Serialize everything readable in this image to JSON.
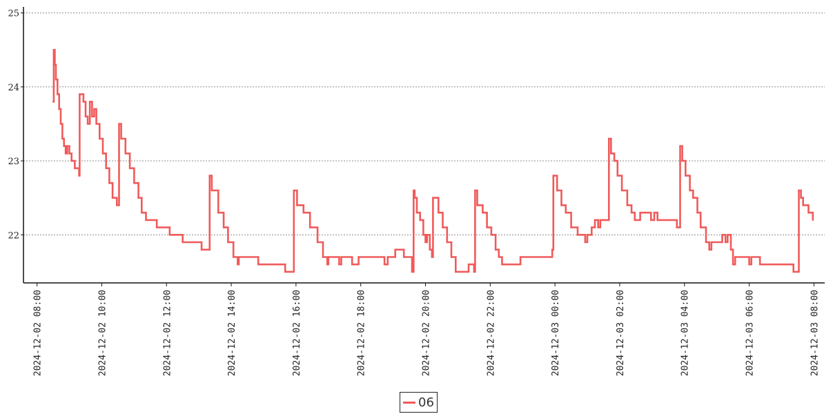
{
  "chart_data": {
    "type": "line",
    "title": "",
    "xlabel": "",
    "ylabel": "",
    "ylim": [
      21.35,
      25.1
    ],
    "xlim": [
      "2024-12-02 07:40",
      "2024-12-03 08:20"
    ],
    "grid": "horizontal dotted",
    "legend_position": "bottom-center",
    "y_ticks": [
      "22",
      "23",
      "24",
      "25"
    ],
    "x_ticks": [
      "2024-12-02 08:00",
      "2024-12-02 10:00",
      "2024-12-02 12:00",
      "2024-12-02 14:00",
      "2024-12-02 16:00",
      "2024-12-02 18:00",
      "2024-12-02 20:00",
      "2024-12-02 22:00",
      "2024-12-03 00:00",
      "2024-12-03 02:00",
      "2024-12-03 04:00",
      "2024-12-03 06:00",
      "2024-12-03 08:00"
    ],
    "series": [
      {
        "name": "06",
        "color": "#f05a5a",
        "step": true,
        "points": [
          [
            "2024-12-02 08:30",
            23.8
          ],
          [
            "2024-12-02 08:31",
            24.5
          ],
          [
            "2024-12-02 08:33",
            24.3
          ],
          [
            "2024-12-02 08:35",
            24.1
          ],
          [
            "2024-12-02 08:38",
            23.9
          ],
          [
            "2024-12-02 08:41",
            23.7
          ],
          [
            "2024-12-02 08:44",
            23.5
          ],
          [
            "2024-12-02 08:47",
            23.3
          ],
          [
            "2024-12-02 08:50",
            23.2
          ],
          [
            "2024-12-02 08:53",
            23.1
          ],
          [
            "2024-12-02 08:56",
            23.2
          ],
          [
            "2024-12-02 09:00",
            23.1
          ],
          [
            "2024-12-02 09:04",
            23.0
          ],
          [
            "2024-12-02 09:10",
            22.9
          ],
          [
            "2024-12-02 09:18",
            22.8
          ],
          [
            "2024-12-02 09:19",
            23.9
          ],
          [
            "2024-12-02 09:26",
            23.8
          ],
          [
            "2024-12-02 09:30",
            23.6
          ],
          [
            "2024-12-02 09:34",
            23.5
          ],
          [
            "2024-12-02 09:38",
            23.8
          ],
          [
            "2024-12-02 09:42",
            23.6
          ],
          [
            "2024-12-02 09:46",
            23.7
          ],
          [
            "2024-12-02 09:50",
            23.5
          ],
          [
            "2024-12-02 09:56",
            23.3
          ],
          [
            "2024-12-02 10:02",
            23.1
          ],
          [
            "2024-12-02 10:08",
            22.9
          ],
          [
            "2024-12-02 10:14",
            22.7
          ],
          [
            "2024-12-02 10:20",
            22.5
          ],
          [
            "2024-12-02 10:28",
            22.4
          ],
          [
            "2024-12-02 10:32",
            23.5
          ],
          [
            "2024-12-02 10:36",
            23.3
          ],
          [
            "2024-12-02 10:44",
            23.1
          ],
          [
            "2024-12-02 10:52",
            22.9
          ],
          [
            "2024-12-02 11:00",
            22.7
          ],
          [
            "2024-12-02 11:08",
            22.5
          ],
          [
            "2024-12-02 11:14",
            22.3
          ],
          [
            "2024-12-02 11:22",
            22.2
          ],
          [
            "2024-12-02 11:42",
            22.1
          ],
          [
            "2024-12-02 12:06",
            22.0
          ],
          [
            "2024-12-02 12:30",
            21.9
          ],
          [
            "2024-12-02 13:05",
            21.8
          ],
          [
            "2024-12-02 13:20",
            22.8
          ],
          [
            "2024-12-02 13:24",
            22.6
          ],
          [
            "2024-12-02 13:36",
            22.3
          ],
          [
            "2024-12-02 13:46",
            22.1
          ],
          [
            "2024-12-02 13:54",
            21.9
          ],
          [
            "2024-12-02 14:04",
            21.7
          ],
          [
            "2024-12-02 14:12",
            21.6
          ],
          [
            "2024-12-02 14:14",
            21.7
          ],
          [
            "2024-12-02 14:50",
            21.6
          ],
          [
            "2024-12-02 15:40",
            21.5
          ],
          [
            "2024-12-02 15:56",
            22.6
          ],
          [
            "2024-12-02 16:02",
            22.4
          ],
          [
            "2024-12-02 16:14",
            22.3
          ],
          [
            "2024-12-02 16:26",
            22.1
          ],
          [
            "2024-12-02 16:40",
            21.9
          ],
          [
            "2024-12-02 16:50",
            21.7
          ],
          [
            "2024-12-02 16:58",
            21.6
          ],
          [
            "2024-12-02 17:00",
            21.7
          ],
          [
            "2024-12-02 17:20",
            21.6
          ],
          [
            "2024-12-02 17:24",
            21.7
          ],
          [
            "2024-12-02 17:44",
            21.6
          ],
          [
            "2024-12-02 17:56",
            21.7
          ],
          [
            "2024-12-02 18:44",
            21.6
          ],
          [
            "2024-12-02 18:50",
            21.7
          ],
          [
            "2024-12-02 19:04",
            21.8
          ],
          [
            "2024-12-02 19:20",
            21.7
          ],
          [
            "2024-12-02 19:35",
            21.5
          ],
          [
            "2024-12-02 19:38",
            22.6
          ],
          [
            "2024-12-02 19:40",
            22.5
          ],
          [
            "2024-12-02 19:44",
            22.3
          ],
          [
            "2024-12-02 19:50",
            22.2
          ],
          [
            "2024-12-02 19:56",
            22.0
          ],
          [
            "2024-12-02 20:00",
            21.9
          ],
          [
            "2024-12-02 20:03",
            22.0
          ],
          [
            "2024-12-02 20:08",
            21.8
          ],
          [
            "2024-12-02 20:12",
            21.7
          ],
          [
            "2024-12-02 20:14",
            22.5
          ],
          [
            "2024-12-02 20:24",
            22.3
          ],
          [
            "2024-12-02 20:32",
            22.1
          ],
          [
            "2024-12-02 20:40",
            21.9
          ],
          [
            "2024-12-02 20:48",
            21.7
          ],
          [
            "2024-12-02 20:56",
            21.5
          ],
          [
            "2024-12-02 21:20",
            21.6
          ],
          [
            "2024-12-02 21:30",
            21.5
          ],
          [
            "2024-12-02 21:32",
            22.6
          ],
          [
            "2024-12-02 21:36",
            22.4
          ],
          [
            "2024-12-02 21:46",
            22.3
          ],
          [
            "2024-12-02 21:54",
            22.1
          ],
          [
            "2024-12-02 22:02",
            22.0
          ],
          [
            "2024-12-02 22:10",
            21.8
          ],
          [
            "2024-12-02 22:16",
            21.7
          ],
          [
            "2024-12-02 22:22",
            21.6
          ],
          [
            "2024-12-02 22:56",
            21.7
          ],
          [
            "2024-12-02 23:55",
            21.8
          ],
          [
            "2024-12-02 23:57",
            22.8
          ],
          [
            "2024-12-03 00:04",
            22.6
          ],
          [
            "2024-12-03 00:12",
            22.4
          ],
          [
            "2024-12-03 00:20",
            22.3
          ],
          [
            "2024-12-03 00:30",
            22.1
          ],
          [
            "2024-12-03 00:42",
            22.0
          ],
          [
            "2024-12-03 00:56",
            21.9
          ],
          [
            "2024-12-03 01:00",
            22.0
          ],
          [
            "2024-12-03 01:08",
            22.1
          ],
          [
            "2024-12-03 01:14",
            22.2
          ],
          [
            "2024-12-03 01:20",
            22.1
          ],
          [
            "2024-12-03 01:24",
            22.2
          ],
          [
            "2024-12-03 01:40",
            23.3
          ],
          [
            "2024-12-03 01:44",
            23.1
          ],
          [
            "2024-12-03 01:50",
            23.0
          ],
          [
            "2024-12-03 01:56",
            22.8
          ],
          [
            "2024-12-03 02:04",
            22.6
          ],
          [
            "2024-12-03 02:14",
            22.4
          ],
          [
            "2024-12-03 02:22",
            22.3
          ],
          [
            "2024-12-03 02:28",
            22.2
          ],
          [
            "2024-12-03 02:38",
            22.3
          ],
          [
            "2024-12-03 02:58",
            22.2
          ],
          [
            "2024-12-03 03:04",
            22.3
          ],
          [
            "2024-12-03 03:10",
            22.2
          ],
          [
            "2024-12-03 03:46",
            22.1
          ],
          [
            "2024-12-03 03:52",
            23.2
          ],
          [
            "2024-12-03 03:56",
            23.0
          ],
          [
            "2024-12-03 04:02",
            22.8
          ],
          [
            "2024-12-03 04:10",
            22.6
          ],
          [
            "2024-12-03 04:16",
            22.5
          ],
          [
            "2024-12-03 04:24",
            22.3
          ],
          [
            "2024-12-03 04:30",
            22.1
          ],
          [
            "2024-12-03 04:40",
            21.9
          ],
          [
            "2024-12-03 04:46",
            21.8
          ],
          [
            "2024-12-03 04:50",
            21.9
          ],
          [
            "2024-12-03 05:10",
            22.0
          ],
          [
            "2024-12-03 05:16",
            21.9
          ],
          [
            "2024-12-03 05:20",
            22.0
          ],
          [
            "2024-12-03 05:26",
            21.8
          ],
          [
            "2024-12-03 05:30",
            21.6
          ],
          [
            "2024-12-03 05:34",
            21.7
          ],
          [
            "2024-12-03 06:00",
            21.6
          ],
          [
            "2024-12-03 06:04",
            21.7
          ],
          [
            "2024-12-03 06:20",
            21.6
          ],
          [
            "2024-12-03 07:22",
            21.5
          ],
          [
            "2024-12-03 07:32",
            22.6
          ],
          [
            "2024-12-03 07:36",
            22.5
          ],
          [
            "2024-12-03 07:40",
            22.4
          ],
          [
            "2024-12-03 07:50",
            22.3
          ],
          [
            "2024-12-03 07:58",
            22.2
          ]
        ]
      }
    ]
  }
}
